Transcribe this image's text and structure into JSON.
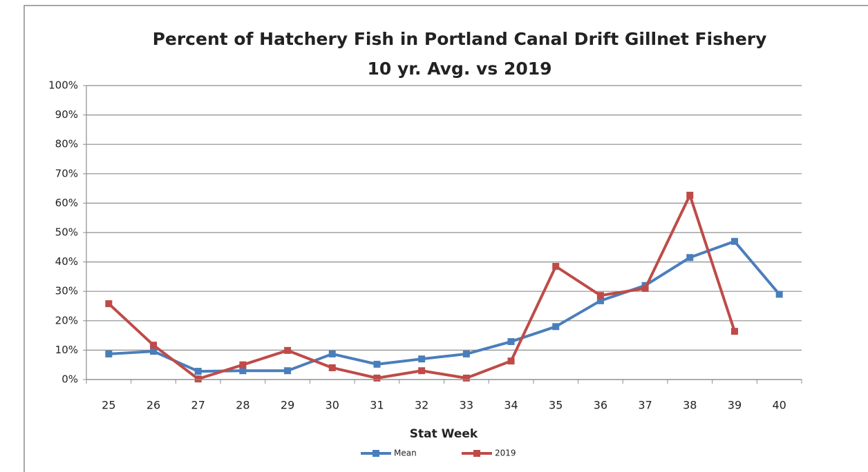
{
  "chart_data": {
    "type": "line",
    "title": "Percent of Hatchery Fish in Portland Canal Drift Gillnet Fishery",
    "subtitle": "10 yr. Avg. vs 2019",
    "x_label": "Stat Week",
    "categories": [
      "25",
      "26",
      "27",
      "28",
      "29",
      "30",
      "31",
      "32",
      "33",
      "34",
      "35",
      "36",
      "37",
      "38",
      "39",
      "40"
    ],
    "series": [
      {
        "name": "Mean",
        "color": "#4a7ebb",
        "values": [
          8.7,
          9.6,
          2.8,
          3,
          3,
          8.7,
          5.2,
          7,
          8.7,
          12.9,
          18,
          26.8,
          32,
          41.5,
          47,
          29
        ]
      },
      {
        "name": "2019",
        "color": "#be4b48",
        "values": [
          25.8,
          11.7,
          0.2,
          5,
          9.9,
          4,
          0.5,
          3,
          0.5,
          6.3,
          38.5,
          28.6,
          31,
          62.7,
          16.4,
          null
        ]
      }
    ],
    "ylim": [
      0,
      100
    ],
    "yticks": [
      {
        "value": 0,
        "label": "0%"
      },
      {
        "value": 10,
        "label": "10%"
      },
      {
        "value": 20,
        "label": "20%"
      },
      {
        "value": 30,
        "label": "30%"
      },
      {
        "value": 40,
        "label": "40%"
      },
      {
        "value": 50,
        "label": "50%"
      },
      {
        "value": 60,
        "label": "60%"
      },
      {
        "value": 70,
        "label": "70%"
      },
      {
        "value": 80,
        "label": "80%"
      },
      {
        "value": 90,
        "label": "90%"
      },
      {
        "value": 100,
        "label": "100%"
      }
    ],
    "grid": true,
    "legend": "bottom"
  }
}
